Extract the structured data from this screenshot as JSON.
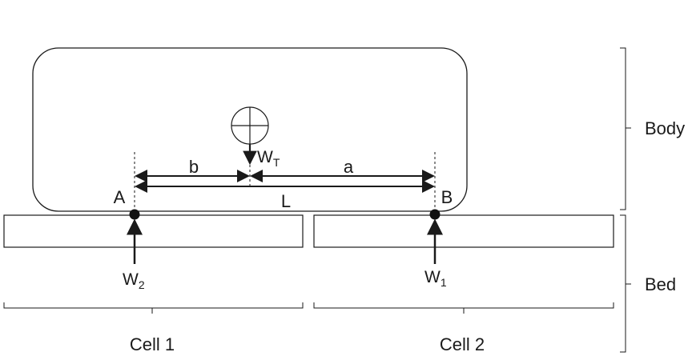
{
  "labels": {
    "body": "Body",
    "bed": "Bed",
    "cell_1": "Cell 1",
    "cell_2": "Cell 2",
    "point_a": "A",
    "point_b": "B",
    "dim_b": "b",
    "dim_a": "a",
    "dim_l": "L",
    "weight_total": "W",
    "weight_total_sub": "T",
    "reaction_a": "W",
    "reaction_a_sub": "2",
    "reaction_b": "W",
    "reaction_b_sub": "1"
  },
  "colors": {
    "stroke": "#1a1a1a",
    "background": "#ffffff"
  }
}
